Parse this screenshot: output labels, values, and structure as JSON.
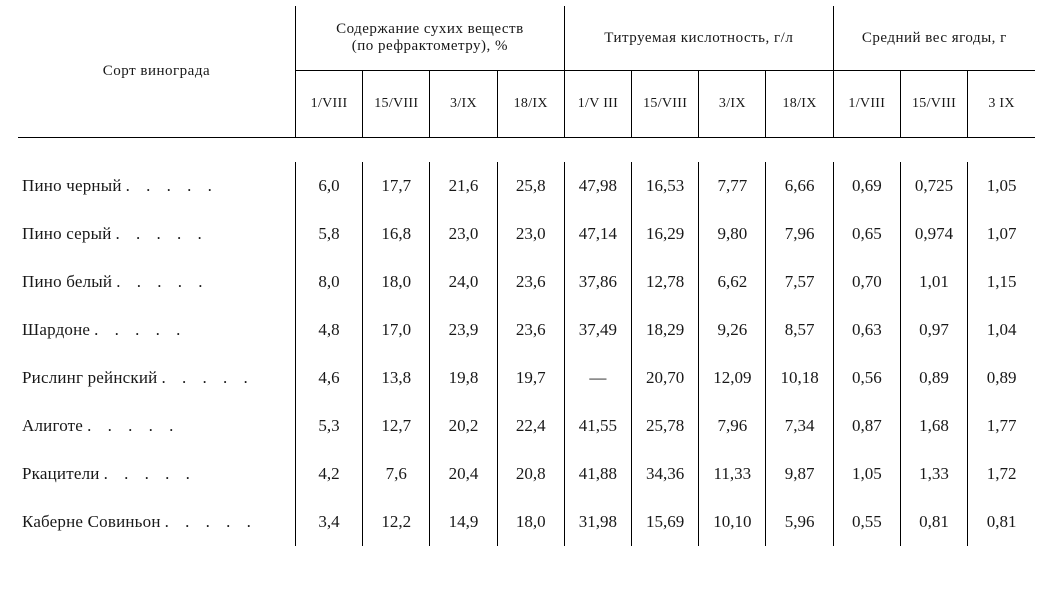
{
  "header": {
    "varietyLabel": "Сорт винограда",
    "groups": [
      {
        "title": "Содержание сухих веществ\n(по рефрактометру), %",
        "dates": [
          "1/VIII",
          "15/VIII",
          "3/IX",
          "18/IX"
        ]
      },
      {
        "title": "Титруемая кислотность, г/л",
        "dates": [
          "1/V III",
          "15/VIII",
          "3/IX",
          "18/IX"
        ]
      },
      {
        "title": "Средний вес ягоды, г",
        "dates": [
          "1/VIII",
          "15/VIII",
          "3 IX"
        ]
      }
    ]
  },
  "rows": [
    {
      "name": "Пино черный",
      "g1": [
        "6,0",
        "17,7",
        "21,6",
        "25,8"
      ],
      "g2": [
        "47,98",
        "16,53",
        "7,77",
        "6,66"
      ],
      "g3": [
        "0,69",
        "0,725",
        "1,05"
      ]
    },
    {
      "name": "Пино серый",
      "g1": [
        "5,8",
        "16,8",
        "23,0",
        "23,0"
      ],
      "g2": [
        "47,14",
        "16,29",
        "9,80",
        "7,96"
      ],
      "g3": [
        "0,65",
        "0,974",
        "1,07"
      ]
    },
    {
      "name": "Пино белый",
      "g1": [
        "8,0",
        "18,0",
        "24,0",
        "23,6"
      ],
      "g2": [
        "37,86",
        "12,78",
        "6,62",
        "7,57"
      ],
      "g3": [
        "0,70",
        "1,01",
        "1,15"
      ]
    },
    {
      "name": "Шардоне",
      "g1": [
        "4,8",
        "17,0",
        "23,9",
        "23,6"
      ],
      "g2": [
        "37,49",
        "18,29",
        "9,26",
        "8,57"
      ],
      "g3": [
        "0,63",
        "0,97",
        "1,04"
      ]
    },
    {
      "name": "Рислинг рейнский",
      "g1": [
        "4,6",
        "13,8",
        "19,8",
        "19,7"
      ],
      "g2": [
        "—",
        "20,70",
        "12,09",
        "10,18"
      ],
      "g3": [
        "0,56",
        "0,89",
        "0,89"
      ]
    },
    {
      "name": "Алиготе",
      "g1": [
        "5,3",
        "12,7",
        "20,2",
        "22,4"
      ],
      "g2": [
        "41,55",
        "25,78",
        "7,96",
        "7,34"
      ],
      "g3": [
        "0,87",
        "1,68",
        "1,77"
      ]
    },
    {
      "name": "Ркацители",
      "g1": [
        "4,2",
        "7,6",
        "20,4",
        "20,8"
      ],
      "g2": [
        "41,88",
        "34,36",
        "11,33",
        "9,87"
      ],
      "g3": [
        "1,05",
        "1,33",
        "1,72"
      ]
    },
    {
      "name": "Каберне Совиньон",
      "g1": [
        "3,4",
        "12,2",
        "14,9",
        "18,0"
      ],
      "g2": [
        "31,98",
        "15,69",
        "10,10",
        "5,96"
      ],
      "g3": [
        "0,55",
        "0,81",
        "0,81"
      ]
    }
  ],
  "style": {
    "fontFamily": "Times New Roman",
    "textColor": "#1a1a1a",
    "ruleColor": "#000000",
    "dotFiller": ".   .   .   .   ."
  }
}
